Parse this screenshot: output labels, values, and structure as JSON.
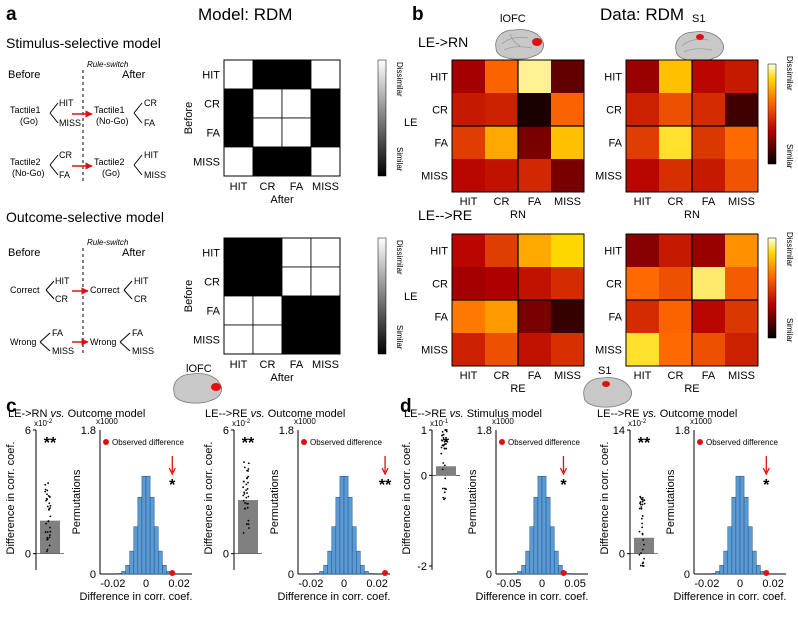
{
  "panels": {
    "a": "a",
    "b": "b",
    "c": "c",
    "d": "d"
  },
  "headers": {
    "model": "Model: RDM",
    "data": "Data: RDM"
  },
  "a": {
    "stim_title": "Stimulus-selective model",
    "outc_title": "Outcome-selective model",
    "before": "Before",
    "after": "After",
    "rule_switch": "Rule-switch",
    "stim_tree": {
      "t1_before_1": "Tactile1",
      "t1_before_2": "(Go)",
      "t1_after_1": "Tactile1",
      "t1_after_2": "(No-Go)",
      "t2_before_1": "Tactile2",
      "t2_before_2": "(No-Go)",
      "t2_after_1": "Tactile2",
      "t2_after_2": "(Go)",
      "b1_top": "HIT",
      "b1_bot": "MISS",
      "a1_top": "CR",
      "a1_bot": "FA",
      "b2_top": "CR",
      "b2_bot": "FA",
      "a2_top": "HIT",
      "a2_bot": "MISS"
    },
    "outc_tree": {
      "correct": "Correct",
      "wrong": "Wrong",
      "c_top": "HIT",
      "c_bot": "CR",
      "w_top": "FA",
      "w_bot": "MISS"
    },
    "stim_matrix": {
      "rows": [
        "HIT",
        "CR",
        "FA",
        "MISS"
      ],
      "cols": [
        "HIT",
        "CR",
        "FA",
        "MISS"
      ],
      "cells": [
        [
          1,
          0,
          0,
          1
        ],
        [
          0,
          1,
          1,
          0
        ],
        [
          0,
          1,
          1,
          0
        ],
        [
          1,
          0,
          0,
          1
        ]
      ],
      "ylabel": "Before",
      "xlabel": "After"
    },
    "outc_matrix": {
      "rows": [
        "HIT",
        "CR",
        "FA",
        "MISS"
      ],
      "cols": [
        "HIT",
        "CR",
        "FA",
        "MISS"
      ],
      "cells": [
        [
          0,
          0,
          1,
          1
        ],
        [
          0,
          0,
          1,
          1
        ],
        [
          1,
          1,
          0,
          0
        ],
        [
          1,
          1,
          0,
          0
        ]
      ],
      "ylabel": "Before",
      "xlabel": "After"
    },
    "colorbar": {
      "top": "Dissimilar",
      "bottom": "Similar"
    }
  },
  "b": {
    "region1": "lOFC",
    "region2": "S1",
    "row1_title": "LE->RN",
    "row2_title": "LE-->RE",
    "ylabel": "LE",
    "xlabel_row1": "RN",
    "xlabel_row2": "RE",
    "labels": [
      "HIT",
      "CR",
      "FA",
      "MISS"
    ],
    "colorbar": {
      "top": "Dissimilar",
      "bottom": "Similar"
    },
    "matrices": {
      "lofc_rn": [
        [
          0.3,
          0.6,
          0.95,
          0.18
        ],
        [
          0.4,
          0.42,
          0.05,
          0.6
        ],
        [
          0.5,
          0.75,
          0.22,
          0.8
        ],
        [
          0.35,
          0.38,
          0.44,
          0.22
        ]
      ],
      "s1_rn": [
        [
          0.28,
          0.8,
          0.35,
          0.4
        ],
        [
          0.42,
          0.55,
          0.45,
          0.12
        ],
        [
          0.5,
          0.88,
          0.48,
          0.62
        ],
        [
          0.35,
          0.46,
          0.4,
          0.56
        ]
      ],
      "lofc_re": [
        [
          0.35,
          0.5,
          0.75,
          0.85
        ],
        [
          0.3,
          0.32,
          0.38,
          0.45
        ],
        [
          0.65,
          0.72,
          0.22,
          0.1
        ],
        [
          0.42,
          0.55,
          0.38,
          0.46
        ]
      ],
      "s1_re": [
        [
          0.25,
          0.4,
          0.28,
          0.7
        ],
        [
          0.62,
          0.55,
          0.92,
          0.58
        ],
        [
          0.45,
          0.6,
          0.35,
          0.48
        ],
        [
          0.88,
          0.62,
          0.55,
          0.42
        ]
      ]
    }
  },
  "c": {
    "region": "lOFC",
    "sub1": {
      "title": "LE->RN",
      "vs": "vs.",
      "model": "Outcome model",
      "bar_ylabel": "Difference in corr. coef.",
      "bar_exp": "x10-2",
      "bar_exp_base": "x10",
      "bar_exp_pow": "-2",
      "bar_ticks": [
        "6",
        "0"
      ],
      "bar_mean": 1.6,
      "bar_ylim": [
        -0.6,
        6
      ],
      "stars": "**",
      "hist_ylabel": "Permutations",
      "hist_exp": "x1000",
      "hist_ticks_y": [
        "1.8",
        "0"
      ],
      "hist_xlabel": "Difference in corr. coef.",
      "hist_ticks_x": [
        "-0.02",
        "0",
        "0.02"
      ],
      "observed_label": "Observed difference",
      "observed": 0.016,
      "hist_stars": "*",
      "hist_xlim": [
        -0.028,
        0.028
      ]
    },
    "sub2": {
      "title": "LE-->RE",
      "vs": "vs.",
      "model": "Outcome model",
      "bar_ylabel": "Difference in corr. coef.",
      "bar_exp": "x10-2",
      "bar_exp_base": "x10",
      "bar_exp_pow": "-2",
      "bar_ticks": [
        "6",
        "0"
      ],
      "bar_mean": 2.6,
      "bar_ylim": [
        -0.6,
        6
      ],
      "stars": "**",
      "hist_ylabel": "Permutations",
      "hist_exp": "x1000",
      "hist_ticks_y": [
        "1.8",
        "0"
      ],
      "hist_xlabel": "Difference in corr. coef.",
      "hist_ticks_x": [
        "-0.02",
        "0",
        "0.02"
      ],
      "observed_label": "Observed difference",
      "observed": 0.025,
      "hist_stars": "**",
      "hist_xlim": [
        -0.028,
        0.028
      ]
    }
  },
  "d": {
    "region": "S1",
    "sub1": {
      "title": "LE-->RE",
      "vs": "vs.",
      "model": "Stimulus model",
      "bar_ylabel": "Difference in corr. coef.",
      "bar_exp": "x10-1",
      "bar_exp_base": "x10",
      "bar_exp_pow": "-1",
      "bar_ticks": [
        "1",
        "0",
        "-2"
      ],
      "bar_mean": 0.2,
      "bar_ylim": [
        -2,
        1
      ],
      "stars": "*",
      "hist_ylabel": "Permutations",
      "hist_exp": "x1000",
      "hist_ticks_y": [
        "1.8",
        "0"
      ],
      "hist_xlabel": "Difference in corr. coef.",
      "hist_ticks_x": [
        "-0.05",
        "0",
        "0.05"
      ],
      "observed_label": "Observed difference",
      "observed": 0.035,
      "hist_stars": "*",
      "hist_xlim": [
        -0.075,
        0.075
      ]
    },
    "sub2": {
      "title": "LE-->RE",
      "vs": "vs.",
      "model": "Outcome model",
      "bar_ylabel": "Difference in corr. coef.",
      "bar_exp": "x10-2",
      "bar_exp_base": "x10",
      "bar_exp_pow": "-2",
      "bar_ticks": [
        "14",
        "0"
      ],
      "bar_mean": 1.8,
      "bar_ylim": [
        -1.4,
        14
      ],
      "stars": "**",
      "hist_ylabel": "Permutations",
      "hist_exp": "x1000",
      "hist_ticks_y": [
        "1.8",
        "0"
      ],
      "hist_xlabel": "Difference in corr. coef.",
      "hist_ticks_x": [
        "-0.02",
        "0",
        "0.02"
      ],
      "observed_label": "Observed difference",
      "observed": 0.016,
      "hist_stars": "*",
      "hist_xlim": [
        -0.028,
        0.028
      ]
    }
  },
  "chart_data": [
    {
      "type": "heatmap",
      "title": "Stimulus-selective model",
      "rows": [
        "HIT",
        "CR",
        "FA",
        "MISS"
      ],
      "cols": [
        "HIT",
        "CR",
        "FA",
        "MISS"
      ],
      "ylabel": "Before",
      "xlabel": "After",
      "values": [
        [
          1,
          0,
          0,
          1
        ],
        [
          0,
          1,
          1,
          0
        ],
        [
          0,
          1,
          1,
          0
        ],
        [
          1,
          0,
          0,
          1
        ]
      ]
    },
    {
      "type": "heatmap",
      "title": "Outcome-selective model",
      "rows": [
        "HIT",
        "CR",
        "FA",
        "MISS"
      ],
      "cols": [
        "HIT",
        "CR",
        "FA",
        "MISS"
      ],
      "ylabel": "Before",
      "xlabel": "After",
      "values": [
        [
          0,
          0,
          1,
          1
        ],
        [
          0,
          0,
          1,
          1
        ],
        [
          1,
          1,
          0,
          0
        ],
        [
          1,
          1,
          0,
          0
        ]
      ]
    },
    {
      "type": "heatmap",
      "title": "lOFC LE->RN",
      "ylabel": "LE",
      "xlabel": "RN"
    },
    {
      "type": "heatmap",
      "title": "S1 LE->RN",
      "ylabel": "LE",
      "xlabel": "RN"
    },
    {
      "type": "heatmap",
      "title": "lOFC LE-->RE",
      "ylabel": "LE",
      "xlabel": "RE"
    },
    {
      "type": "heatmap",
      "title": "S1 LE-->RE",
      "ylabel": "LE",
      "xlabel": "RE"
    },
    {
      "type": "bar",
      "title": "lOFC LE->RN vs. Outcome model",
      "values": [
        1.6
      ],
      "ylim": [
        -0.6,
        6
      ]
    },
    {
      "type": "bar",
      "title": "lOFC LE-->RE vs. Outcome model",
      "values": [
        2.6
      ],
      "ylim": [
        -0.6,
        6
      ]
    },
    {
      "type": "bar",
      "title": "S1 LE-->RE vs. Stimulus model",
      "values": [
        0.2
      ],
      "ylim": [
        -2,
        1
      ]
    },
    {
      "type": "bar",
      "title": "S1 LE-->RE vs. Outcome model",
      "values": [
        1.8
      ],
      "ylim": [
        -1.4,
        14
      ]
    }
  ]
}
